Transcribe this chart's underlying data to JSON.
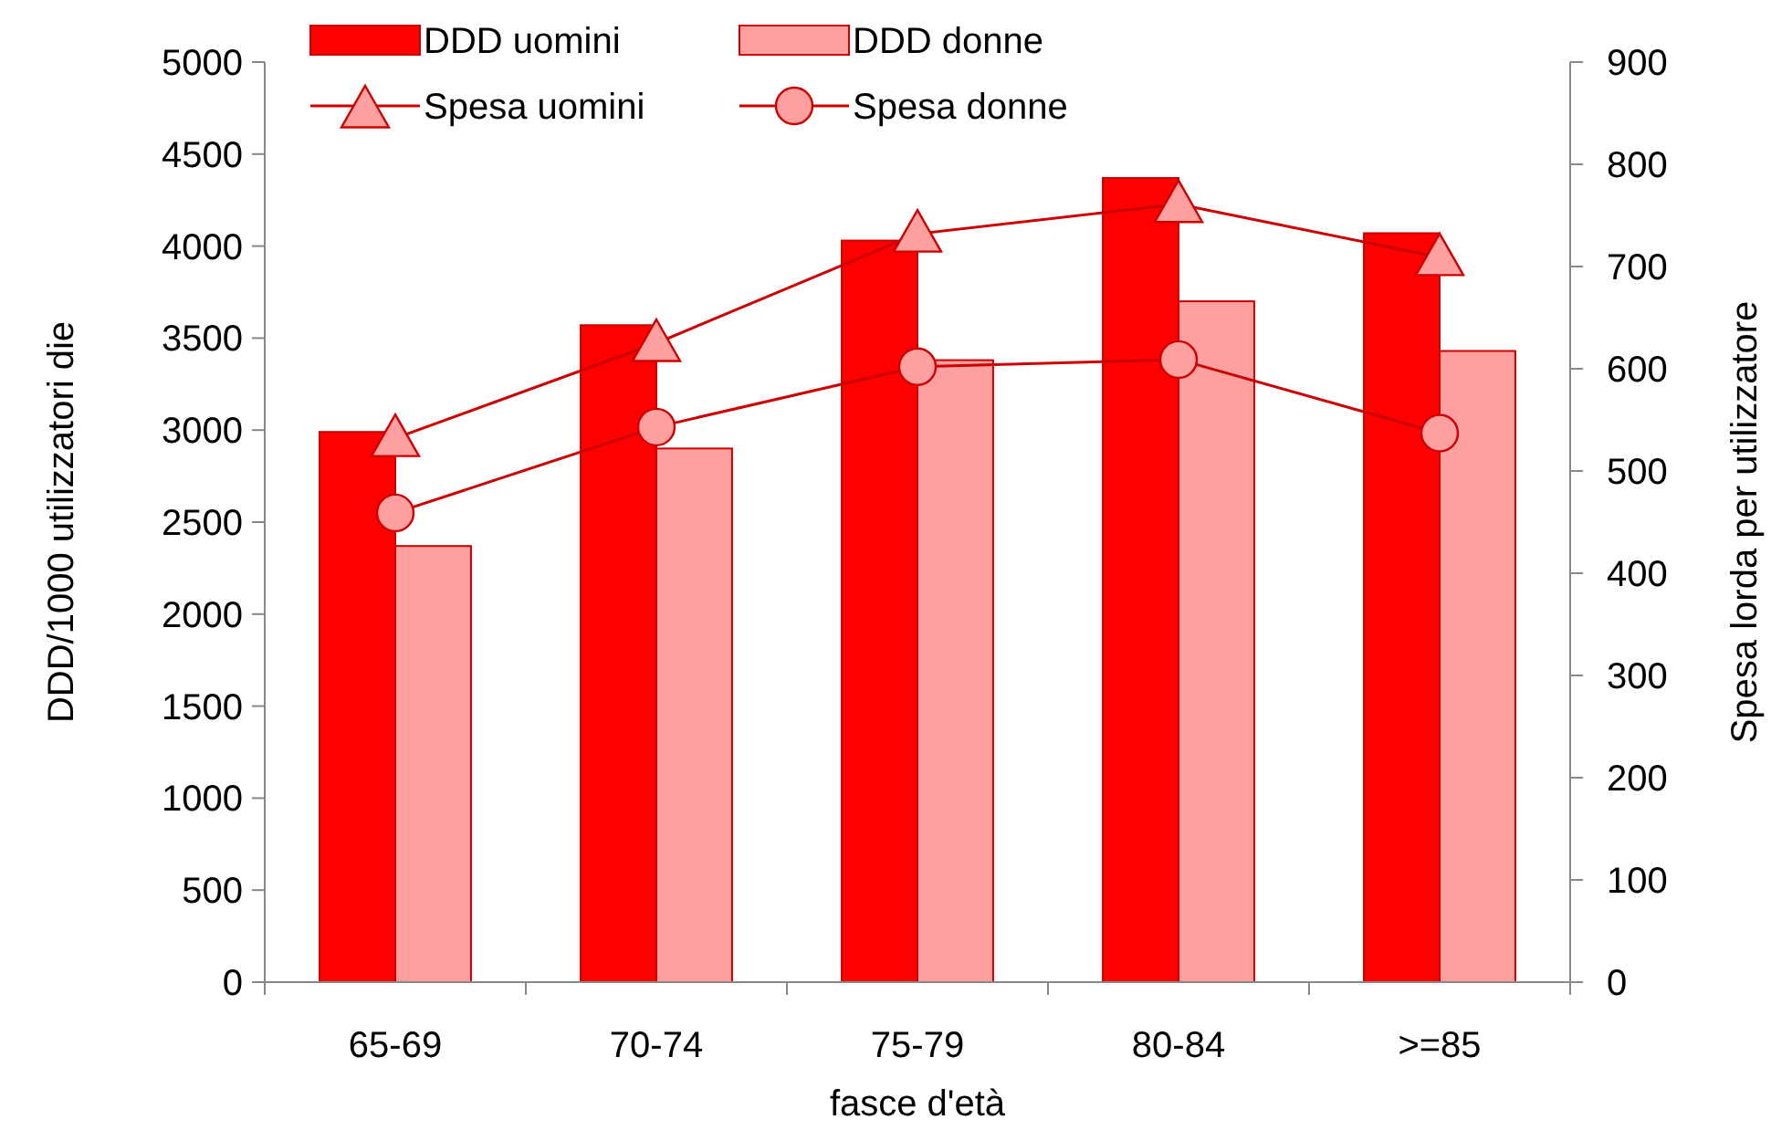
{
  "chart_data": {
    "type": "bar",
    "xlabel": "fasce d'età",
    "ylabel": "DDD/1000 utilizzatori  die",
    "y2label": "Spesa lorda per utilizzatore",
    "categories": [
      "65-69",
      "70-74",
      "75-79",
      "80-84",
      ">=85"
    ],
    "series": [
      {
        "name": "DDD uomini",
        "color": "#ff0000",
        "values": [
          2990,
          3570,
          4030,
          4370,
          4070
        ]
      },
      {
        "name": "DDD donne",
        "color": "#ffa0a0",
        "values": [
          2370,
          2900,
          3380,
          3700,
          3430
        ]
      },
      {
        "name": "Spesa uomini",
        "type": "line",
        "axis": "y2",
        "color": "#cc0000",
        "marker": "triangle",
        "values": [
          532,
          625,
          732,
          761,
          709
        ]
      },
      {
        "name": "Spesa donne",
        "type": "line",
        "axis": "y2",
        "color": "#cc0000",
        "marker": "circle",
        "values": [
          459,
          543,
          602,
          609,
          537
        ]
      }
    ],
    "ylim": [
      0,
      5000
    ],
    "yticks": [
      0,
      500,
      1000,
      1500,
      2000,
      2500,
      3000,
      3500,
      4000,
      4500,
      5000
    ],
    "y2lim": [
      0,
      900
    ],
    "y2ticks": [
      0,
      100,
      200,
      300,
      400,
      500,
      600,
      700,
      800,
      900
    ],
    "grid": false,
    "legend": "top"
  }
}
